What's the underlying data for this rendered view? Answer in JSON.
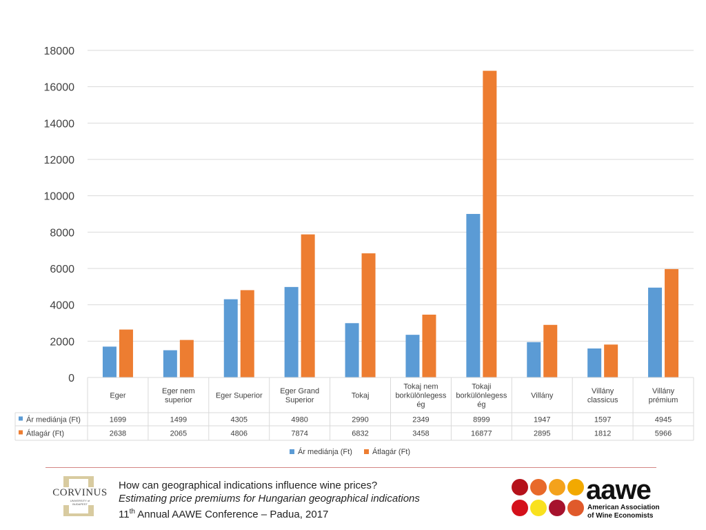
{
  "chart_data": {
    "type": "bar",
    "title": "",
    "xlabel": "",
    "ylabel": "",
    "ylim": [
      0,
      18000
    ],
    "yticks": [
      "0",
      "2000",
      "4000",
      "6000",
      "8000",
      "10000",
      "12000",
      "14000",
      "16000",
      "18000"
    ],
    "grid": true,
    "legend": "bottom",
    "categories": [
      [
        "Eger"
      ],
      [
        "Eger nem",
        "superior"
      ],
      [
        "Eger Superior"
      ],
      [
        "Eger Grand",
        "Superior"
      ],
      [
        "Tokaj"
      ],
      [
        "Tokaj nem",
        "borkülönlegess",
        "ég"
      ],
      [
        "Tokaji",
        "borkülönlegess",
        "ég"
      ],
      [
        "Villány"
      ],
      [
        "Villány",
        "classicus"
      ],
      [
        "Villány",
        "prémium"
      ]
    ],
    "series": [
      {
        "name": "Ár mediánja (Ft)",
        "color": "#5B9BD5",
        "values": [
          1699,
          1499,
          4305,
          4980,
          2990,
          2349,
          8999,
          1947,
          1597,
          4945
        ]
      },
      {
        "name": "Átlagár (Ft)",
        "color": "#ED7D31",
        "values": [
          2638,
          2065,
          4806,
          7874,
          6832,
          3458,
          16877,
          2895,
          1812,
          5966
        ]
      }
    ]
  },
  "footer": {
    "line1": "How can geographical indications influence wine prices?",
    "line2": "Estimating price premiums for Hungarian geographical indications",
    "line3_num": "11",
    "line3_sup": "th",
    "line3_rest": " Annual AAWE Conference – Padua, 2017"
  },
  "logos": {
    "corvinus_name": "CORVINUS",
    "corvinus_sub": "UNIVERSITY of BUDAPEST",
    "aawe_word": "aawe",
    "aawe_sub1": "American Association",
    "aawe_sub2": "of Wine Economists",
    "aawe_dot_colors": [
      "#b5121b",
      "#e8692a",
      "#f4a21c",
      "#f2a900",
      "#d4101b",
      "#f9e11e",
      "#a6122d",
      "#e05a2b"
    ]
  }
}
